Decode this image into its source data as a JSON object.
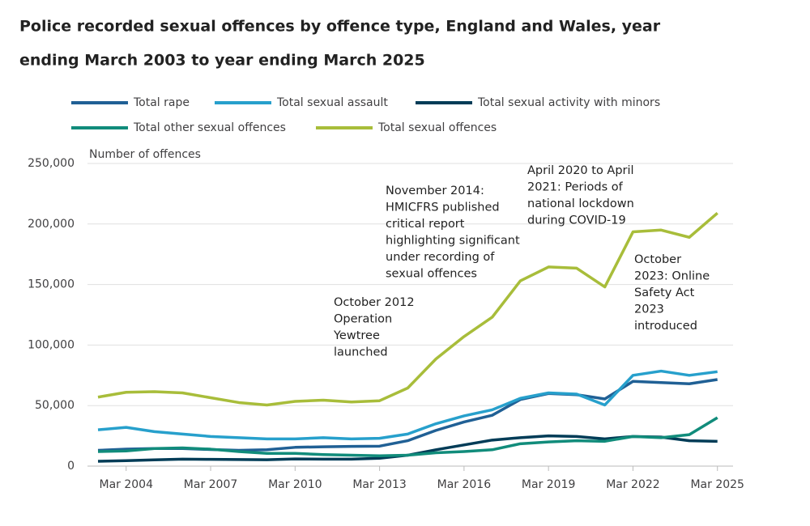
{
  "chart_data": {
    "type": "line",
    "title": [
      "Police recorded sexual offences by offence type, England and Wales, year",
      "ending March 2003 to year ending March 2025"
    ],
    "y_label": "Number of offences",
    "categories": [
      null,
      "Mar 2004",
      null,
      null,
      "Mar 2007",
      null,
      null,
      "Mar 2010",
      null,
      null,
      "Mar 2013",
      null,
      null,
      "Mar 2016",
      null,
      null,
      "Mar 2019",
      null,
      null,
      "Mar 2022",
      null,
      null,
      "Mar 2025"
    ],
    "series": [
      {
        "name": "Total rape",
        "color": "#206095",
        "values": [
          13000,
          14000,
          14500,
          14500,
          13700,
          13000,
          13500,
          15500,
          16000,
          16300,
          16500,
          21000,
          29500,
          36500,
          42000,
          55000,
          60000,
          59000,
          55500,
          70000,
          69000,
          68000,
          71500
        ]
      },
      {
        "name": "Total sexual assault",
        "color": "#27a0cc",
        "values": [
          30000,
          32000,
          28500,
          26500,
          24500,
          23500,
          22500,
          22500,
          23500,
          22500,
          23000,
          26500,
          35000,
          41500,
          46500,
          56000,
          60500,
          59500,
          50500,
          75000,
          78500,
          75000,
          78000
        ]
      },
      {
        "name": "Total sexual activity with minors",
        "color": "#003c57",
        "values": [
          4000,
          4500,
          5200,
          5800,
          5600,
          5400,
          5300,
          5900,
          5800,
          5800,
          6500,
          9000,
          13500,
          17500,
          21500,
          23500,
          25000,
          24500,
          22500,
          24500,
          24000,
          21000,
          20500
        ]
      },
      {
        "name": "Total other sexual offences",
        "color": "#118c7b",
        "values": [
          12000,
          12500,
          14500,
          15000,
          14000,
          12000,
          10500,
          10500,
          9500,
          9000,
          8500,
          9000,
          11000,
          12000,
          13500,
          18500,
          20000,
          21000,
          20500,
          24500,
          23500,
          26000,
          40000
        ]
      },
      {
        "name": "Total sexual offences",
        "color": "#a8bd3a",
        "values": [
          57000,
          61000,
          61500,
          60500,
          56500,
          52500,
          50500,
          53500,
          54500,
          53000,
          54000,
          64500,
          88500,
          107000,
          123000,
          153000,
          164500,
          163500,
          148000,
          193500,
          195000,
          189000,
          209000
        ]
      }
    ],
    "ylim": [
      0,
      250000
    ],
    "yticks": [
      0,
      {
        "value": 50000,
        "label": "50,000"
      },
      {
        "value": 100000,
        "label": "100,000"
      },
      {
        "value": 150000,
        "label": "150,000"
      },
      {
        "value": 200000,
        "label": "200,000"
      },
      {
        "value": 250000,
        "label": "250,000"
      }
    ],
    "grid": true,
    "annotations": [
      [
        "October 2012",
        "Operation",
        "Yewtree",
        "launched"
      ],
      [
        "November 2014:",
        "HMICFRS published",
        "critical report",
        "highlighting significant",
        "under recording of",
        "sexual offences"
      ],
      [
        "April 2020 to April",
        "2021: Periods of",
        "national lockdown",
        "during COVID-19"
      ],
      [
        "October",
        "2023: Online",
        "Safety Act",
        "2023",
        "introduced"
      ]
    ]
  }
}
